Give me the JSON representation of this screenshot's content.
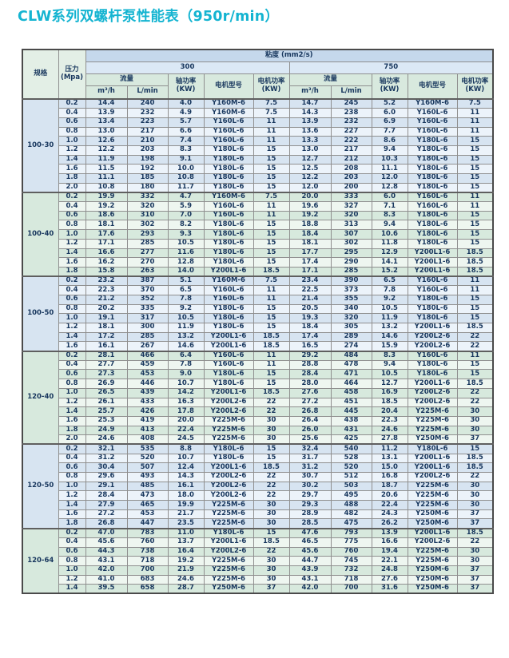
{
  "title": "CLW系列双螺杆泵性能表（950r/min）",
  "colors": {
    "title_accent": "#14b4d1",
    "text": "#17365d",
    "header_blue": "#c5d8ec",
    "header_blue_light": "#dbe8f5",
    "header_green": "#d8e9de",
    "corner_green": "#e3efe6",
    "blue_tint": "#d7e4f1",
    "blue_lite": "#ecf3fa",
    "green_tint": "#d7e9dd",
    "green_lite": "#eef6f0"
  },
  "table": {
    "headers": {
      "spec": "规格",
      "pressure": "压力\n(Mpa)",
      "viscosity": "粘度 (mm2/s)",
      "visc_300": "300",
      "visc_750": "750",
      "flow": "流量",
      "flow_unit_m3h": "m³/h",
      "flow_unit_lmin": "L/min",
      "shaft_power": "轴功率\n(KW)",
      "motor_model": "电机型号",
      "motor_power": "电机功率\n(KW)"
    },
    "groups": [
      {
        "spec": "100-30",
        "tint": "blue",
        "rows": [
          [
            "0.2",
            "14.4",
            "240",
            "4.0",
            "Y160M-6",
            "7.5",
            "14.7",
            "245",
            "5.2",
            "Y160M-6",
            "7.5"
          ],
          [
            "0.4",
            "13.9",
            "232",
            "4.9",
            "Y160M-6",
            "7.5",
            "14.3",
            "238",
            "6.0",
            "Y160L-6",
            "11"
          ],
          [
            "0.6",
            "13.4",
            "223",
            "5.7",
            "Y160L-6",
            "11",
            "13.9",
            "232",
            "6.9",
            "Y160L-6",
            "11"
          ],
          [
            "0.8",
            "13.0",
            "217",
            "6.6",
            "Y160L-6",
            "11",
            "13.6",
            "227",
            "7.7",
            "Y160L-6",
            "11"
          ],
          [
            "1.0",
            "12.6",
            "210",
            "7.4",
            "Y160L-6",
            "11",
            "13.3",
            "222",
            "8.6",
            "Y180L-6",
            "15"
          ],
          [
            "1.2",
            "12.2",
            "203",
            "8.3",
            "Y180L-6",
            "15",
            "13.0",
            "217",
            "9.4",
            "Y180L-6",
            "15"
          ],
          [
            "1.4",
            "11.9",
            "198",
            "9.1",
            "Y180L-6",
            "15",
            "12.7",
            "212",
            "10.3",
            "Y180L-6",
            "15"
          ],
          [
            "1.6",
            "11.5",
            "192",
            "10.0",
            "Y180L-6",
            "15",
            "12.5",
            "208",
            "11.1",
            "Y180L-6",
            "15"
          ],
          [
            "1.8",
            "11.1",
            "185",
            "10.8",
            "Y180L-6",
            "15",
            "12.2",
            "203",
            "12.0",
            "Y180L-6",
            "15"
          ],
          [
            "2.0",
            "10.8",
            "180",
            "11.7",
            "Y180L-6",
            "15",
            "12.0",
            "200",
            "12.8",
            "Y180L-6",
            "15"
          ]
        ]
      },
      {
        "spec": "100-40",
        "tint": "green",
        "rows": [
          [
            "0.2",
            "19.9",
            "332",
            "4.7",
            "Y160M-6",
            "7.5",
            "20.0",
            "333",
            "6.0",
            "Y160L-6",
            "11"
          ],
          [
            "0.4",
            "19.2",
            "320",
            "5.9",
            "Y160L-6",
            "11",
            "19.6",
            "327",
            "7.1",
            "Y160L-6",
            "11"
          ],
          [
            "0.6",
            "18.6",
            "310",
            "7.0",
            "Y160L-6",
            "11",
            "19.2",
            "320",
            "8.3",
            "Y180L-6",
            "15"
          ],
          [
            "0.8",
            "18.1",
            "302",
            "8.2",
            "Y180L-6",
            "15",
            "18.8",
            "313",
            "9.4",
            "Y180L-6",
            "15"
          ],
          [
            "1.0",
            "17.6",
            "293",
            "9.3",
            "Y180L-6",
            "15",
            "18.4",
            "307",
            "10.6",
            "Y180L-6",
            "15"
          ],
          [
            "1.2",
            "17.1",
            "285",
            "10.5",
            "Y180L-6",
            "15",
            "18.1",
            "302",
            "11.8",
            "Y180L-6",
            "15"
          ],
          [
            "1.4",
            "16.6",
            "277",
            "11.6",
            "Y180L-6",
            "15",
            "17.7",
            "295",
            "12.9",
            "Y200L1-6",
            "18.5"
          ],
          [
            "1.6",
            "16.2",
            "270",
            "12.8",
            "Y180L-6",
            "15",
            "17.4",
            "290",
            "14.1",
            "Y200L1-6",
            "18.5"
          ],
          [
            "1.8",
            "15.8",
            "263",
            "14.0",
            "Y200L1-6",
            "18.5",
            "17.1",
            "285",
            "15.2",
            "Y200L1-6",
            "18.5"
          ]
        ]
      },
      {
        "spec": "100-50",
        "tint": "blue",
        "rows": [
          [
            "0.2",
            "23.2",
            "387",
            "5.1",
            "Y160M-6",
            "7.5",
            "23.4",
            "390",
            "6.5",
            "Y160L-6",
            "11"
          ],
          [
            "0.4",
            "22.3",
            "370",
            "6.5",
            "Y160L-6",
            "11",
            "22.5",
            "373",
            "7.8",
            "Y160L-6",
            "11"
          ],
          [
            "0.6",
            "21.2",
            "352",
            "7.8",
            "Y160L-6",
            "11",
            "21.4",
            "355",
            "9.2",
            "Y180L-6",
            "15"
          ],
          [
            "0.8",
            "20.2",
            "335",
            "9.2",
            "Y180L-6",
            "15",
            "20.5",
            "340",
            "10.5",
            "Y180L-6",
            "15"
          ],
          [
            "1.0",
            "19.1",
            "317",
            "10.5",
            "Y180L-6",
            "15",
            "19.3",
            "320",
            "11.9",
            "Y180L-6",
            "15"
          ],
          [
            "1.2",
            "18.1",
            "300",
            "11.9",
            "Y180L-6",
            "15",
            "18.4",
            "305",
            "13.2",
            "Y200L1-6",
            "18.5"
          ],
          [
            "1.4",
            "17.2",
            "285",
            "13.2",
            "Y200L1-6",
            "18.5",
            "17.4",
            "289",
            "14.6",
            "Y200L2-6",
            "22"
          ],
          [
            "1.6",
            "16.1",
            "267",
            "14.6",
            "Y200L1-6",
            "18.5",
            "16.5",
            "274",
            "15.9",
            "Y200L2-6",
            "22"
          ]
        ]
      },
      {
        "spec": "120-40",
        "tint": "green",
        "rows": [
          [
            "0.2",
            "28.1",
            "466",
            "6.4",
            "Y160L-6",
            "11",
            "29.2",
            "484",
            "8.3",
            "Y160L-6",
            "11"
          ],
          [
            "0.4",
            "27.7",
            "459",
            "7.8",
            "Y160L-6",
            "11",
            "28.8",
            "478",
            "9.4",
            "Y180L-6",
            "15"
          ],
          [
            "0.6",
            "27.3",
            "453",
            "9.0",
            "Y180L-6",
            "15",
            "28.4",
            "471",
            "10.5",
            "Y180L-6",
            "15"
          ],
          [
            "0.8",
            "26.9",
            "446",
            "10.7",
            "Y180L-6",
            "15",
            "28.0",
            "464",
            "12.7",
            "Y200L1-6",
            "18.5"
          ],
          [
            "1.0",
            "26.5",
            "439",
            "14.2",
            "Y200L1-6",
            "18.5",
            "27.6",
            "458",
            "16.9",
            "Y200L2-6",
            "22"
          ],
          [
            "1.2",
            "26.1",
            "433",
            "16.3",
            "Y200L2-6",
            "22",
            "27.2",
            "451",
            "18.5",
            "Y200L2-6",
            "22"
          ],
          [
            "1.4",
            "25.7",
            "426",
            "17.8",
            "Y200L2-6",
            "22",
            "26.8",
            "445",
            "20.4",
            "Y225M-6",
            "30"
          ],
          [
            "1.6",
            "25.3",
            "419",
            "20.0",
            "Y225M-6",
            "30",
            "26.4",
            "438",
            "22.3",
            "Y225M-6",
            "30"
          ],
          [
            "1.8",
            "24.9",
            "413",
            "22.4",
            "Y225M-6",
            "30",
            "26.0",
            "431",
            "24.6",
            "Y225M-6",
            "30"
          ],
          [
            "2.0",
            "24.6",
            "408",
            "24.5",
            "Y225M-6",
            "30",
            "25.6",
            "425",
            "27.8",
            "Y250M-6",
            "37"
          ]
        ]
      },
      {
        "spec": "120-50",
        "tint": "blue",
        "rows": [
          [
            "0.2",
            "32.1",
            "535",
            "8.8",
            "Y180L-6",
            "15",
            "32.4",
            "540",
            "11.2",
            "Y180L-6",
            "15"
          ],
          [
            "0.4",
            "31.2",
            "520",
            "10.7",
            "Y180L-6",
            "15",
            "31.7",
            "528",
            "13.1",
            "Y200L1-6",
            "18.5"
          ],
          [
            "0.6",
            "30.4",
            "507",
            "12.4",
            "Y200L1-6",
            "18.5",
            "31.2",
            "520",
            "15.0",
            "Y200L1-6",
            "18.5"
          ],
          [
            "0.8",
            "29.6",
            "493",
            "14.3",
            "Y200L2-6",
            "22",
            "30.7",
            "512",
            "16.8",
            "Y200L2-6",
            "22"
          ],
          [
            "1.0",
            "29.1",
            "485",
            "16.1",
            "Y200L2-6",
            "22",
            "30.2",
            "503",
            "18.7",
            "Y225M-6",
            "30"
          ],
          [
            "1.2",
            "28.4",
            "473",
            "18.0",
            "Y200L2-6",
            "22",
            "29.7",
            "495",
            "20.6",
            "Y225M-6",
            "30"
          ],
          [
            "1.4",
            "27.9",
            "465",
            "19.9",
            "Y225M-6",
            "30",
            "29.3",
            "488",
            "22.4",
            "Y225M-6",
            "30"
          ],
          [
            "1.6",
            "27.2",
            "453",
            "21.7",
            "Y225M-6",
            "30",
            "28.9",
            "482",
            "24.3",
            "Y250M-6",
            "37"
          ],
          [
            "1.8",
            "26.8",
            "447",
            "23.5",
            "Y225M-6",
            "30",
            "28.5",
            "475",
            "26.2",
            "Y250M-6",
            "37"
          ]
        ]
      },
      {
        "spec": "120-64",
        "tint": "green",
        "rows": [
          [
            "0.2",
            "47.0",
            "783",
            "11.0",
            "Y180L-6",
            "15",
            "47.6",
            "793",
            "13.9",
            "Y200L1-6",
            "18.5"
          ],
          [
            "0.4",
            "45.6",
            "760",
            "13.7",
            "Y200L1-6",
            "18.5",
            "46.5",
            "775",
            "16.6",
            "Y200L2-6",
            "22"
          ],
          [
            "0.6",
            "44.3",
            "738",
            "16.4",
            "Y200L2-6",
            "22",
            "45.6",
            "760",
            "19.4",
            "Y225M-6",
            "30"
          ],
          [
            "0.8",
            "43.1",
            "718",
            "19.2",
            "Y225M-6",
            "30",
            "44.7",
            "745",
            "22.1",
            "Y225M-6",
            "30"
          ],
          [
            "1.0",
            "42.0",
            "700",
            "21.9",
            "Y225M-6",
            "30",
            "43.9",
            "732",
            "24.8",
            "Y250M-6",
            "37"
          ],
          [
            "1.2",
            "41.0",
            "683",
            "24.6",
            "Y225M-6",
            "30",
            "43.1",
            "718",
            "27.6",
            "Y250M-6",
            "37"
          ],
          [
            "1.4",
            "39.5",
            "658",
            "28.7",
            "Y250M-6",
            "37",
            "42.0",
            "700",
            "31.6",
            "Y250M-6",
            "37"
          ]
        ]
      }
    ]
  }
}
